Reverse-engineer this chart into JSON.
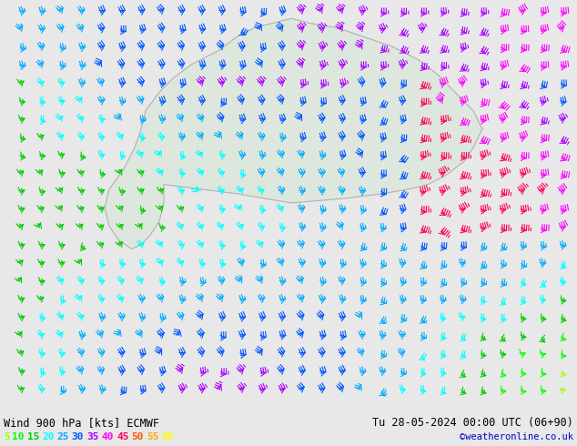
{
  "title_left": "Wind 900 hPa [kts] ECMWF",
  "title_right": "Tu 28-05-2024 00:00 UTC (06+90)",
  "credit": "©weatheronline.co.uk",
  "legend_values": [
    5,
    10,
    15,
    20,
    25,
    30,
    35,
    40,
    45,
    50,
    55,
    60
  ],
  "legend_colors": [
    "#aaff00",
    "#00ff00",
    "#00cc00",
    "#00ffff",
    "#00aaff",
    "#0055ff",
    "#aa00ff",
    "#ff00ff",
    "#ff0055",
    "#ff5500",
    "#ffaa00",
    "#ffff00"
  ],
  "colormap_levels": [
    5,
    10,
    15,
    20,
    25,
    30,
    35,
    40,
    45,
    50,
    55,
    60,
    70
  ],
  "colormap_colors": [
    "#aaff00",
    "#00ff00",
    "#00cc00",
    "#00ffff",
    "#00aaff",
    "#0055ff",
    "#aa00ff",
    "#ff00ff",
    "#ff0055",
    "#ff5500",
    "#ffaa00",
    "#ffff00"
  ],
  "bg_color": "#e8e8e8",
  "map_bg": "#f0f0f0",
  "bottom_bar_color": "#d0d0d0",
  "text_color": "#000000",
  "figsize": [
    6.34,
    4.9
  ],
  "dpi": 100
}
